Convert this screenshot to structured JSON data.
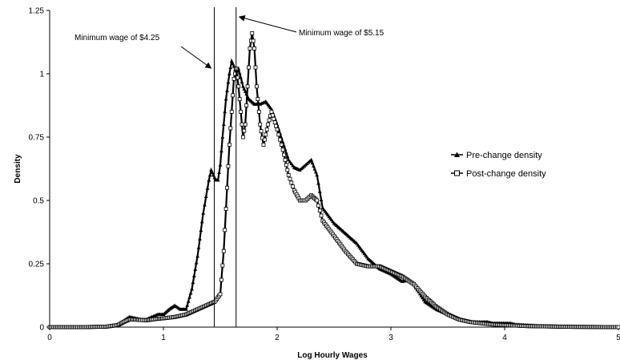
{
  "chart_data": {
    "type": "line",
    "title": "",
    "xlabel": "Log Hourly Wages",
    "ylabel": "Density",
    "xlim": [
      0,
      5
    ],
    "ylim": [
      0,
      1.25
    ],
    "xticks": [
      0,
      1,
      2,
      3,
      4,
      5
    ],
    "yticks": [
      0,
      0.25,
      0.5,
      0.75,
      1,
      1.25
    ],
    "ytick_labels": [
      "0",
      "0.25",
      "0.5",
      "0.75",
      "1",
      "1.25"
    ],
    "grid": false,
    "legend_placement": "right",
    "series": [
      {
        "name": "Pre-change density",
        "marker": "triangle",
        "color": "#000000",
        "x": [
          0,
          0.3,
          0.5,
          0.6,
          0.65,
          0.7,
          0.75,
          0.8,
          0.85,
          0.9,
          0.95,
          1.0,
          1.05,
          1.1,
          1.15,
          1.2,
          1.25,
          1.3,
          1.35,
          1.4,
          1.42,
          1.44,
          1.46,
          1.48,
          1.5,
          1.52,
          1.55,
          1.58,
          1.6,
          1.62,
          1.64,
          1.66,
          1.7,
          1.75,
          1.8,
          1.85,
          1.9,
          1.95,
          2.0,
          2.05,
          2.1,
          2.15,
          2.2,
          2.25,
          2.3,
          2.35,
          2.4,
          2.5,
          2.6,
          2.7,
          2.8,
          2.9,
          3.0,
          3.1,
          3.15,
          3.2,
          3.3,
          3.4,
          3.5,
          3.6,
          3.7,
          3.8,
          3.85,
          3.9,
          4.0,
          4.05,
          4.1,
          4.3,
          4.6,
          5.0
        ],
        "y": [
          0,
          0,
          0.002,
          0.01,
          0.025,
          0.04,
          0.035,
          0.03,
          0.03,
          0.04,
          0.05,
          0.05,
          0.07,
          0.085,
          0.07,
          0.07,
          0.15,
          0.28,
          0.45,
          0.58,
          0.62,
          0.6,
          0.58,
          0.58,
          0.64,
          0.75,
          0.9,
          1.0,
          1.05,
          1.03,
          1.0,
          1.02,
          0.95,
          0.9,
          0.88,
          0.88,
          0.89,
          0.86,
          0.8,
          0.73,
          0.66,
          0.63,
          0.62,
          0.64,
          0.66,
          0.6,
          0.47,
          0.41,
          0.37,
          0.33,
          0.27,
          0.23,
          0.21,
          0.18,
          0.185,
          0.17,
          0.1,
          0.07,
          0.05,
          0.03,
          0.02,
          0.02,
          0.02,
          0.015,
          0.015,
          0.015,
          0.01,
          0.005,
          0.002,
          0
        ]
      },
      {
        "name": "Post-change density",
        "marker": "square",
        "color": "#000000",
        "x": [
          0,
          0.3,
          0.5,
          0.6,
          0.65,
          0.7,
          0.75,
          0.8,
          0.85,
          0.9,
          0.95,
          1.0,
          1.1,
          1.2,
          1.3,
          1.4,
          1.45,
          1.5,
          1.53,
          1.56,
          1.58,
          1.6,
          1.62,
          1.64,
          1.66,
          1.68,
          1.7,
          1.72,
          1.74,
          1.76,
          1.78,
          1.8,
          1.82,
          1.85,
          1.88,
          1.92,
          1.95,
          2.0,
          2.05,
          2.1,
          2.15,
          2.2,
          2.25,
          2.3,
          2.35,
          2.4,
          2.5,
          2.6,
          2.7,
          2.8,
          2.9,
          3.0,
          3.1,
          3.2,
          3.3,
          3.4,
          3.5,
          3.6,
          3.7,
          3.8,
          3.9,
          4.0,
          4.2,
          4.6,
          5.0
        ],
        "y": [
          0,
          0,
          0.002,
          0.008,
          0.02,
          0.03,
          0.03,
          0.028,
          0.027,
          0.03,
          0.033,
          0.035,
          0.04,
          0.05,
          0.07,
          0.09,
          0.1,
          0.13,
          0.3,
          0.55,
          0.72,
          0.85,
          0.98,
          1.02,
          0.95,
          0.85,
          0.75,
          0.8,
          0.95,
          1.1,
          1.16,
          1.1,
          0.95,
          0.8,
          0.72,
          0.8,
          0.85,
          0.78,
          0.7,
          0.6,
          0.54,
          0.5,
          0.5,
          0.52,
          0.5,
          0.42,
          0.36,
          0.3,
          0.25,
          0.24,
          0.24,
          0.22,
          0.2,
          0.17,
          0.12,
          0.08,
          0.05,
          0.03,
          0.02,
          0.015,
          0.01,
          0.008,
          0.004,
          0.001,
          0
        ]
      }
    ],
    "vertical_lines": [
      {
        "x": 1.447,
        "label": "Minimum wage of $4.25"
      },
      {
        "x": 1.639,
        "label": "Minimum wage of $5.15"
      }
    ]
  }
}
